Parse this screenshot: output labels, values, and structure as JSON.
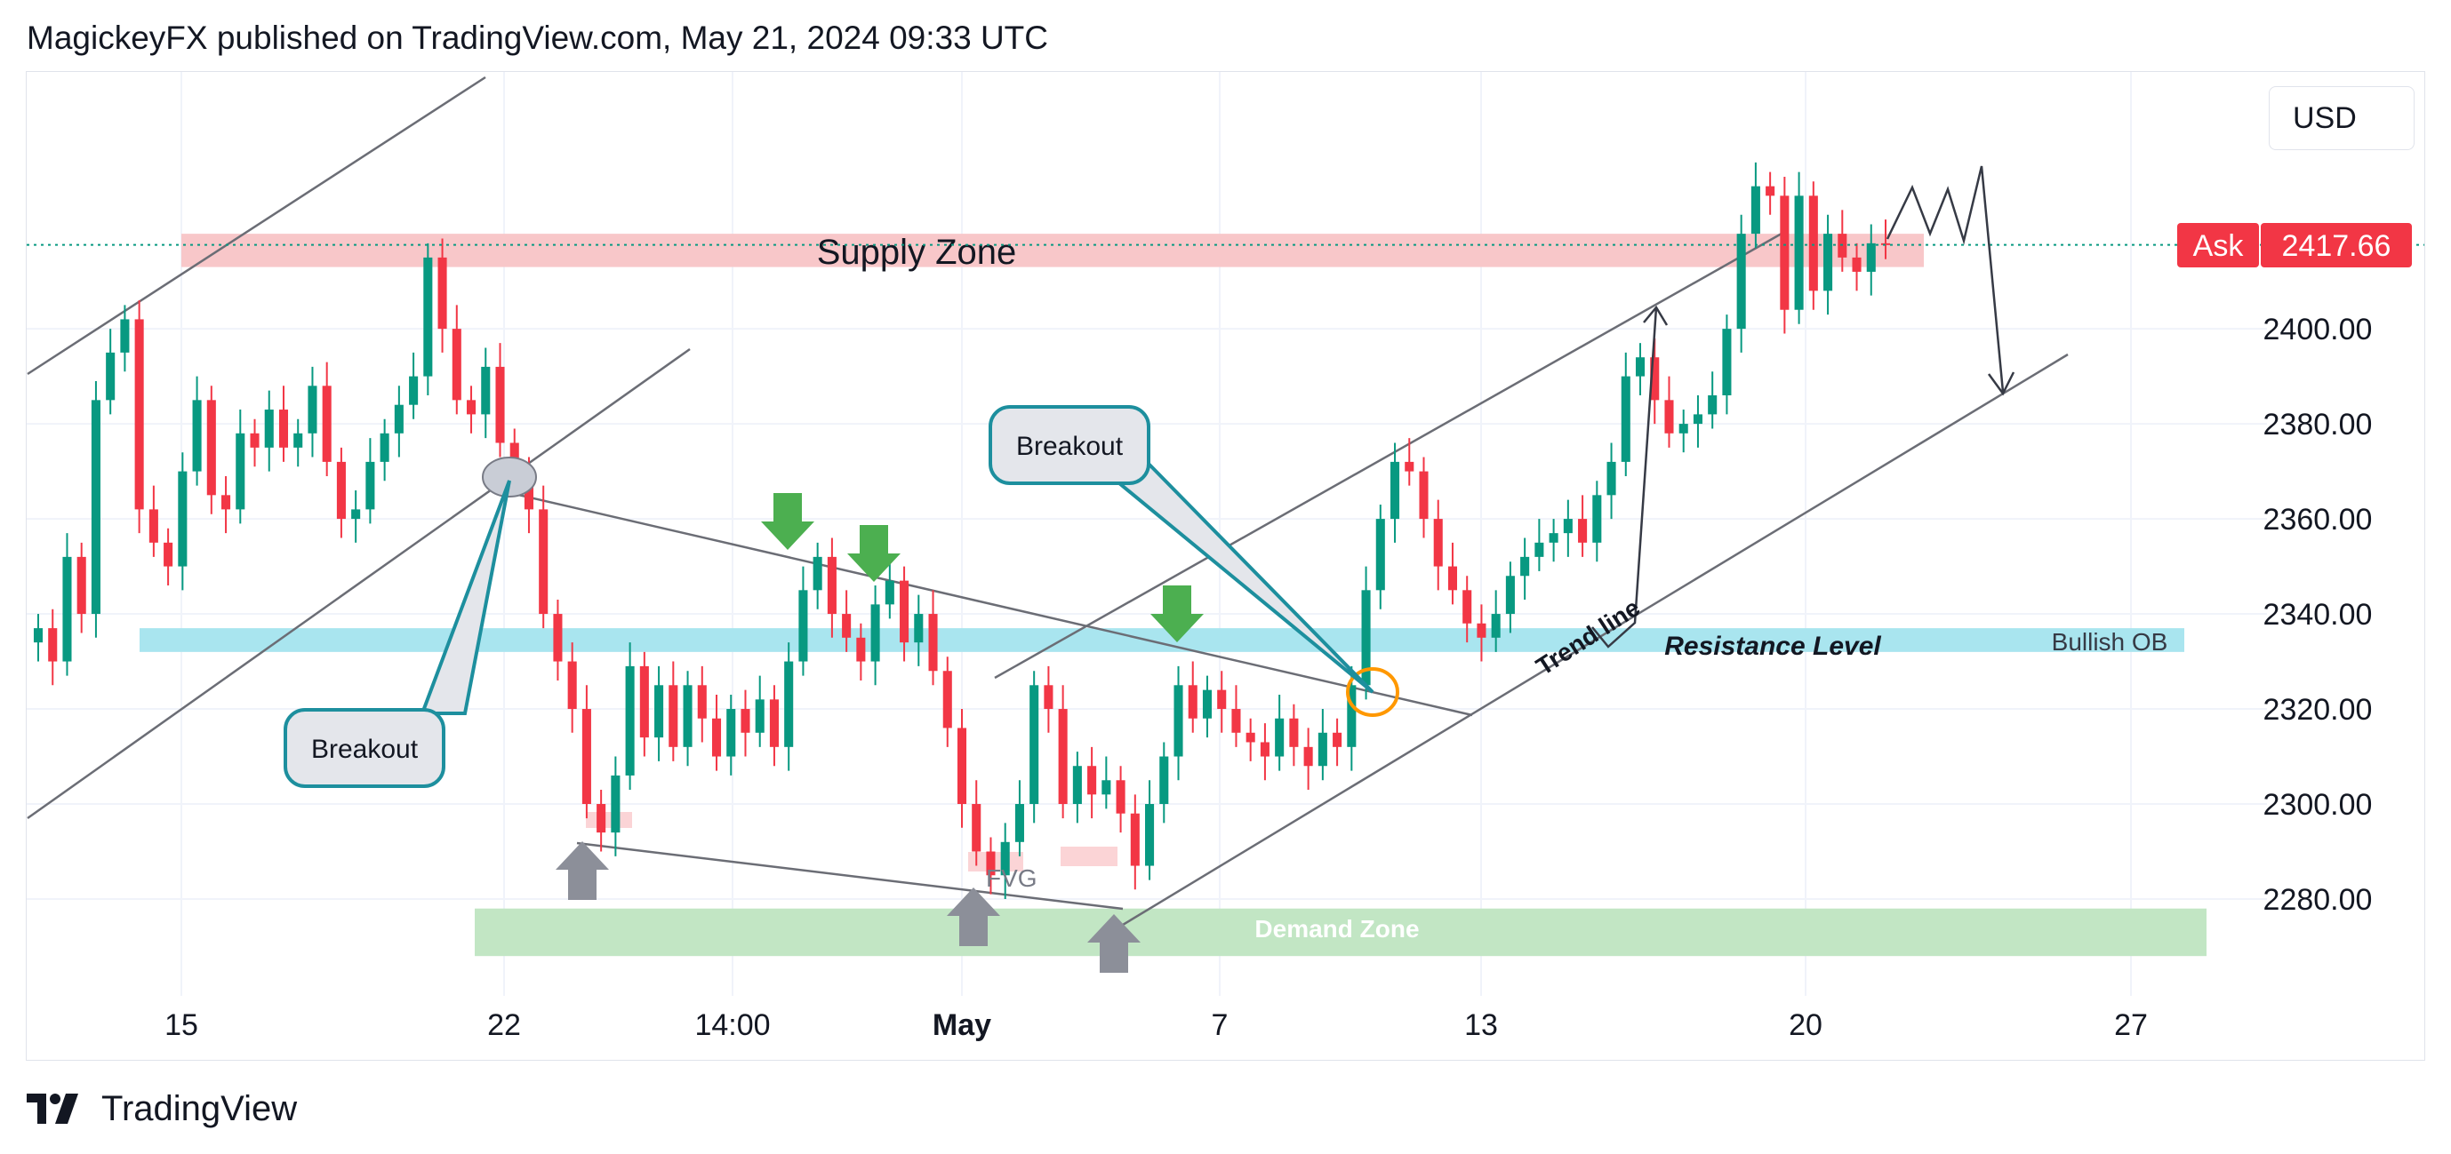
{
  "header": {
    "publisher": "MagickeyFX published on TradingView.com, May 21, 2024 09:33 UTC"
  },
  "footer": {
    "brand": "TradingView",
    "logo_icon": "tradingview-logo-icon"
  },
  "currency": "USD",
  "ask": {
    "label": "Ask",
    "value": "2417.66",
    "price": 2417.66
  },
  "colors": {
    "bull": "#089981",
    "bear": "#f23645",
    "supply": "#f8c7c9",
    "demand": "#c2e6c4",
    "resistance": "#a9e5ef",
    "callout": "#1d8f9e",
    "arrow_green": "#4caf50",
    "arrow_gray": "#8c8f99",
    "circle": "#ff9800"
  },
  "chart_data": {
    "type": "candlestick",
    "y_axis": {
      "min": 2255,
      "max": 2440,
      "ticks": [
        2280,
        2300,
        2320,
        2340,
        2360,
        2380,
        2400
      ]
    },
    "y_tick_labels": [
      "2280.00",
      "2300.00",
      "2320.00",
      "2340.00",
      "2360.00",
      "2380.00",
      "2400.00"
    ],
    "x_ticks": [
      {
        "label": "15",
        "bold": false
      },
      {
        "label": "22",
        "bold": false
      },
      {
        "label": "14:00",
        "bold": false
      },
      {
        "label": "May",
        "bold": true
      },
      {
        "label": "7",
        "bold": false
      },
      {
        "label": "13",
        "bold": false
      },
      {
        "label": "20",
        "bold": false
      },
      {
        "label": "27",
        "bold": false
      }
    ],
    "zones": [
      {
        "name": "Supply Zone",
        "label": "Supply Zone",
        "from": 2413,
        "to": 2420
      },
      {
        "name": "Resistance Level",
        "label": "Resistance Level",
        "tag": "Bullish OB",
        "from": 2332,
        "to": 2337
      },
      {
        "name": "Demand Zone",
        "label": "Demand Zone",
        "from": 2268,
        "to": 2278
      }
    ],
    "annotations": {
      "breakout_1": "Breakout",
      "breakout_2": "Breakout",
      "trend_line": "Trend line",
      "fvg": "FVG"
    },
    "candle_anchors": [
      2337,
      2330,
      2352,
      2340,
      2385,
      2395,
      2402,
      2362,
      2355,
      2350,
      2370,
      2385,
      2365,
      2362,
      2378,
      2375,
      2383,
      2375,
      2378,
      2388,
      2372,
      2360,
      2362,
      2372,
      2378,
      2384,
      2390,
      2415,
      2400,
      2385,
      2382,
      2392,
      2376,
      2369,
      2362,
      2340,
      2330,
      2320,
      2300,
      2294,
      2306,
      2329,
      2314,
      2325,
      2312,
      2325,
      2318,
      2310,
      2320,
      2315,
      2322,
      2312,
      2330,
      2345,
      2352,
      2340,
      2335,
      2330,
      2342,
      2347,
      2334,
      2340,
      2328,
      2316,
      2300,
      2290,
      2285,
      2292,
      2300,
      2325,
      2320,
      2300,
      2308,
      2302,
      2305,
      2298,
      2287,
      2300,
      2310,
      2325,
      2318,
      2324,
      2320,
      2315,
      2313,
      2310,
      2318,
      2312,
      2308,
      2315,
      2312,
      2325,
      2345,
      2360,
      2372,
      2370,
      2360,
      2350,
      2345,
      2338,
      2335,
      2340,
      2348,
      2352,
      2355,
      2357,
      2360,
      2355,
      2365,
      2372,
      2390,
      2394,
      2385,
      2378,
      2380,
      2382,
      2386,
      2400,
      2420,
      2430,
      2428,
      2404,
      2428,
      2408,
      2420,
      2415,
      2412,
      2418,
      2417.66
    ]
  }
}
